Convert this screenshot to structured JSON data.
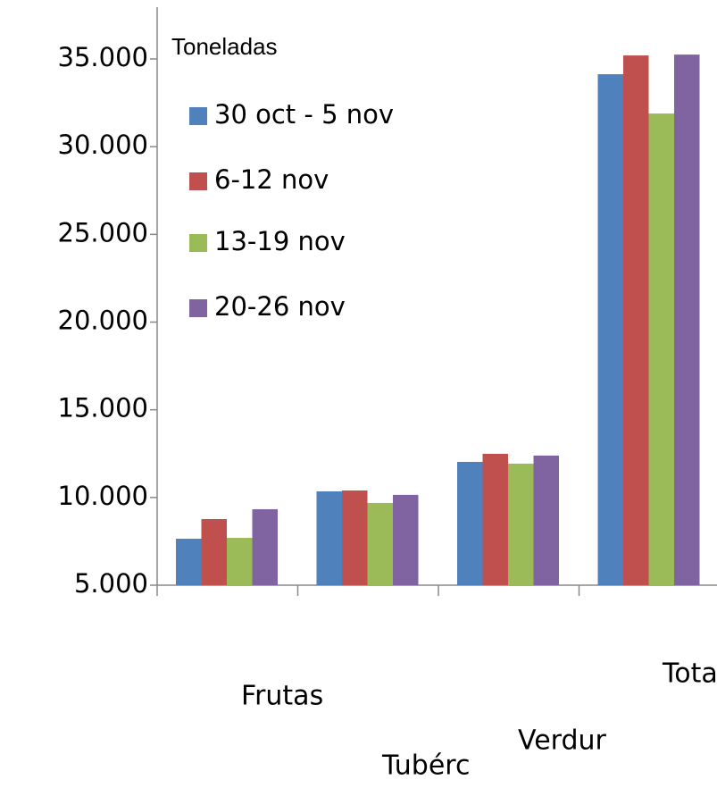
{
  "chart_data": {
    "type": "bar",
    "legend_title": "Toneladas",
    "categories": [
      "Frutas",
      "Tubérc",
      "Verdur",
      "Tota"
    ],
    "series": [
      {
        "name": "30 oct - 5 nov",
        "color": "#4f81bd",
        "values": [
          7650,
          10350,
          12030,
          34130
        ]
      },
      {
        "name": "6-12 nov",
        "color": "#c0504d",
        "values": [
          8770,
          10400,
          12490,
          35200
        ]
      },
      {
        "name": "13-19 nov",
        "color": "#9bbb59",
        "values": [
          7700,
          9690,
          11930,
          31890
        ]
      },
      {
        "name": "20-26 nov",
        "color": "#8064a2",
        "values": [
          9330,
          10150,
          12390,
          35250
        ]
      }
    ],
    "ylim": [
      5000,
      35000
    ],
    "yticks": [
      {
        "value": 5000,
        "label": "5.000"
      },
      {
        "value": 10000,
        "label": "10.000"
      },
      {
        "value": 15000,
        "label": "15.000"
      },
      {
        "value": 20000,
        "label": "20.000"
      },
      {
        "value": 25000,
        "label": "25.000"
      },
      {
        "value": 30000,
        "label": "30.000"
      },
      {
        "value": 35000,
        "label": "35.000"
      }
    ],
    "grid": false,
    "legend": "top-left"
  }
}
